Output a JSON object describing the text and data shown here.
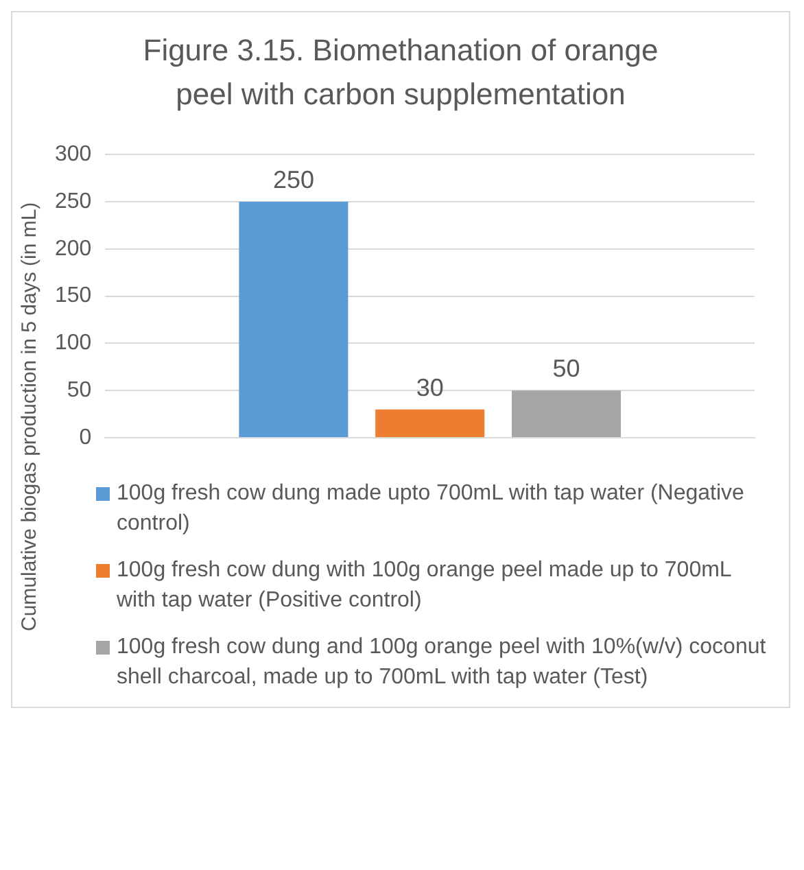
{
  "chart_data": {
    "type": "bar",
    "title": "Figure 3.15. Biomethanation of orange peel with carbon supplementation",
    "ylabel": "Cumulative biogas production in 5 days (in mL)",
    "categories": [
      null
    ],
    "series": [
      {
        "name": "100g fresh cow dung made upto 700mL with tap water (Negative control)",
        "color": "#5b9bd5",
        "values": [
          250
        ]
      },
      {
        "name": "100g fresh cow dung with 100g orange peel made up to 700mL with tap water (Positive control)",
        "color": "#ed7d31",
        "values": [
          30
        ]
      },
      {
        "name": "100g fresh cow dung and 100g orange peel with 10%(w/v) coconut shell charcoal, made up to 700mL with tap water (Test)",
        "color": "#a5a5a5",
        "values": [
          50
        ]
      }
    ],
    "ylim": [
      0,
      300
    ],
    "yticks": [
      0,
      50,
      100,
      150,
      200,
      250,
      300
    ],
    "grid": "y",
    "legend": "bottom",
    "data_labels": true
  }
}
